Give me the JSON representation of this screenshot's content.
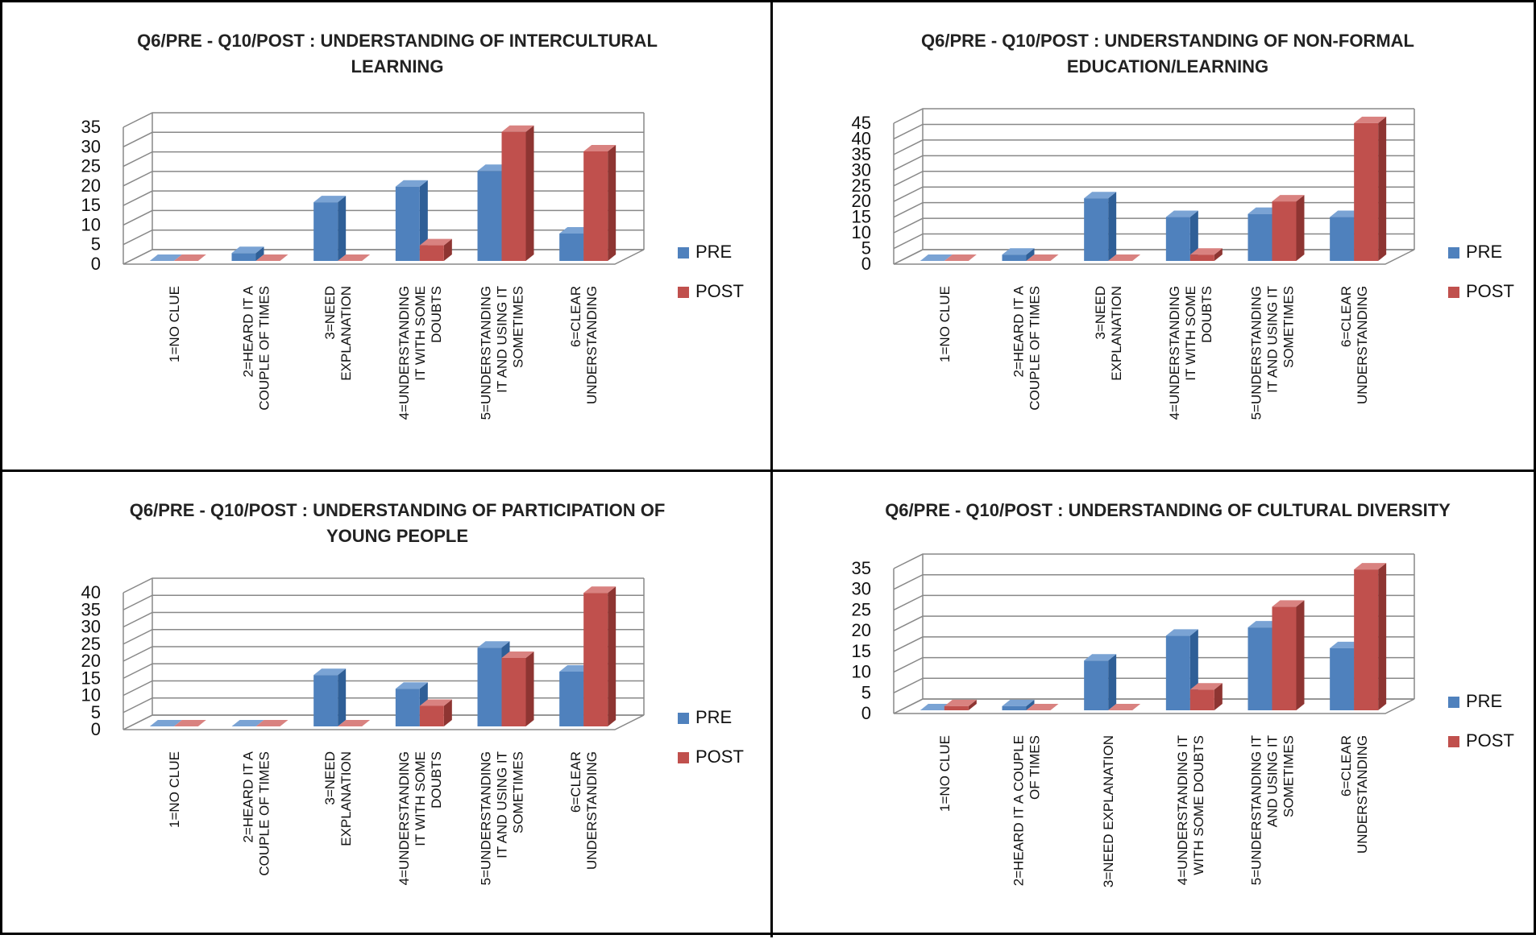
{
  "legend": {
    "pre_label": "PRE",
    "post_label": "POST"
  },
  "colors": {
    "pre": "#4f81bd",
    "pre_top": "#7aa3d4",
    "pre_side": "#2f5f97",
    "post": "#c0504d",
    "post_top": "#d98280",
    "post_side": "#8e3532",
    "grid": "#888888",
    "border": "#000000"
  },
  "chart_data": [
    {
      "type": "bar",
      "title": [
        "Q6/PRE - Q10/POST : UNDERSTANDING OF INTERCULTURAL",
        "LEARNING"
      ],
      "categories": [
        [
          "1=NO CLUE"
        ],
        [
          "2=HEARD IT A",
          "COUPLE OF TIMES"
        ],
        [
          "3=NEED",
          "EXPLANATION"
        ],
        [
          "4=UNDERSTANDING",
          "IT WITH SOME",
          "DOUBTS"
        ],
        [
          "5=UNDERSTANDING",
          "IT AND USING IT",
          "SOMETIMES"
        ],
        [
          "6=CLEAR",
          "UNDERSTANDING"
        ]
      ],
      "series": [
        {
          "name": "PRE",
          "values": [
            0,
            2,
            15,
            19,
            23,
            7
          ]
        },
        {
          "name": "POST",
          "values": [
            0,
            0,
            0,
            4,
            33,
            28
          ]
        }
      ],
      "ylim": [
        0,
        35
      ],
      "yticks": [
        0,
        5,
        10,
        15,
        20,
        25,
        30,
        35
      ],
      "grid": true,
      "legend_position": "right"
    },
    {
      "type": "bar",
      "title": [
        "Q6/PRE - Q10/POST : UNDERSTANDING OF NON-FORMAL",
        "EDUCATION/LEARNING"
      ],
      "categories": [
        [
          "1=NO CLUE"
        ],
        [
          "2=HEARD IT A",
          "COUPLE OF TIMES"
        ],
        [
          "3=NEED",
          "EXPLANATION"
        ],
        [
          "4=UNDERSTANDING",
          "IT WITH SOME",
          "DOUBTS"
        ],
        [
          "5=UNDERSTANDING",
          "IT AND USING IT",
          "SOMETIMES"
        ],
        [
          "6=CLEAR",
          "UNDERSTANDING"
        ]
      ],
      "series": [
        {
          "name": "PRE",
          "values": [
            0,
            2,
            20,
            14,
            15,
            14
          ]
        },
        {
          "name": "POST",
          "values": [
            0,
            0,
            0,
            2,
            19,
            44
          ]
        }
      ],
      "ylim": [
        0,
        45
      ],
      "yticks": [
        0,
        5,
        10,
        15,
        20,
        25,
        30,
        35,
        40,
        45
      ],
      "grid": true,
      "legend_position": "right"
    },
    {
      "type": "bar",
      "title": [
        "Q6/PRE - Q10/POST : UNDERSTANDING OF PARTICIPATION OF",
        "YOUNG PEOPLE"
      ],
      "categories": [
        [
          "1=NO CLUE"
        ],
        [
          "2=HEARD IT A",
          "COUPLE OF TIMES"
        ],
        [
          "3=NEED",
          "EXPLANATION"
        ],
        [
          "4=UNDERSTANDING",
          "IT WITH SOME",
          "DOUBTS"
        ],
        [
          "5=UNDERSTANDING",
          "IT AND USING IT",
          "SOMETIMES"
        ],
        [
          "6=CLEAR",
          "UNDERSTANDING"
        ]
      ],
      "series": [
        {
          "name": "PRE",
          "values": [
            0,
            0,
            15,
            11,
            23,
            16
          ]
        },
        {
          "name": "POST",
          "values": [
            0,
            0,
            0,
            6,
            20,
            39
          ]
        }
      ],
      "ylim": [
        0,
        40
      ],
      "yticks": [
        0,
        5,
        10,
        15,
        20,
        25,
        30,
        35,
        40
      ],
      "grid": true,
      "legend_position": "right"
    },
    {
      "type": "bar",
      "title": [
        "Q6/PRE - Q10/POST : UNDERSTANDING OF CULTURAL DIVERSITY"
      ],
      "categories": [
        [
          "1=NO CLUE"
        ],
        [
          "2=HEARD IT A COUPLE",
          "OF TIMES"
        ],
        [
          "3=NEED EXPLANATION"
        ],
        [
          "4=UNDERSTANDING IT",
          "WITH SOME DOUBTS"
        ],
        [
          "5=UNDERSTANDING IT",
          "AND USING IT",
          "SOMETIMES"
        ],
        [
          "6=CLEAR",
          "UNDERSTANDING"
        ]
      ],
      "series": [
        {
          "name": "PRE",
          "values": [
            0,
            1,
            12,
            18,
            20,
            15
          ]
        },
        {
          "name": "POST",
          "values": [
            1,
            0,
            0,
            5,
            25,
            34
          ]
        }
      ],
      "ylim": [
        0,
        35
      ],
      "yticks": [
        0,
        5,
        10,
        15,
        20,
        25,
        30,
        35
      ],
      "grid": true,
      "legend_position": "right"
    }
  ]
}
